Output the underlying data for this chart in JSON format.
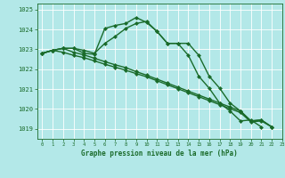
{
  "title": "Graphe pression niveau de la mer (hPa)",
  "background_color": "#b3e8e8",
  "grid_color": "#ffffff",
  "line_color": "#1a6b2a",
  "xlim": [
    -0.5,
    23
  ],
  "ylim": [
    1018.5,
    1025.3
  ],
  "yticks": [
    1019,
    1020,
    1021,
    1022,
    1023,
    1024,
    1025
  ],
  "xticks": [
    0,
    1,
    2,
    3,
    4,
    5,
    6,
    7,
    8,
    9,
    10,
    11,
    12,
    13,
    14,
    15,
    16,
    17,
    18,
    19,
    20,
    21,
    22,
    23
  ],
  "s1_x": [
    0,
    1,
    2,
    3,
    4,
    5,
    6,
    7,
    8,
    9,
    10,
    11,
    12,
    13,
    14,
    15,
    16,
    17,
    18,
    19,
    20,
    21,
    22
  ],
  "s1_y": [
    1022.8,
    1022.95,
    1023.05,
    1023.05,
    1022.8,
    1022.75,
    1024.05,
    1024.2,
    1024.3,
    1024.6,
    1024.35,
    1023.9,
    1023.3,
    1023.3,
    1023.3,
    1022.7,
    1021.65,
    1021.05,
    1020.3,
    1019.9,
    1019.4,
    1019.45,
    1019.1
  ],
  "s2_x": [
    0,
    1,
    2,
    3,
    4,
    5,
    6,
    7,
    8,
    9,
    10,
    11,
    12,
    13,
    14,
    15,
    16,
    17,
    18,
    19,
    20,
    21
  ],
  "s2_y": [
    1022.8,
    1022.95,
    1023.05,
    1023.05,
    1022.95,
    1022.8,
    1023.3,
    1023.65,
    1024.05,
    1024.3,
    1024.4,
    1023.9,
    1023.3,
    1023.3,
    1022.7,
    1021.65,
    1021.05,
    1020.3,
    1019.9,
    1019.4,
    1019.45,
    1019.1
  ],
  "s3_x": [
    0,
    1,
    2,
    3,
    4,
    5,
    6,
    7,
    8,
    9,
    10,
    11,
    12,
    13,
    14,
    15,
    16,
    17,
    18,
    19,
    20,
    21,
    22
  ],
  "s3_y": [
    1022.8,
    1022.95,
    1023.05,
    1022.85,
    1022.72,
    1022.55,
    1022.38,
    1022.22,
    1022.08,
    1021.88,
    1021.7,
    1021.5,
    1021.3,
    1021.1,
    1020.9,
    1020.7,
    1020.5,
    1020.3,
    1020.1,
    1019.9,
    1019.4,
    1019.45,
    1019.1
  ],
  "s4_x": [
    0,
    1,
    2,
    3,
    4,
    5,
    6,
    7,
    8,
    9,
    10,
    11,
    12,
    13,
    14,
    15,
    16,
    17,
    18,
    19,
    20,
    21,
    22
  ],
  "s4_y": [
    1022.8,
    1022.95,
    1022.85,
    1022.7,
    1022.58,
    1022.42,
    1022.25,
    1022.1,
    1021.95,
    1021.78,
    1021.62,
    1021.42,
    1021.22,
    1021.02,
    1020.82,
    1020.62,
    1020.42,
    1020.22,
    1020.02,
    1019.82,
    1019.35,
    1019.4,
    1019.1
  ],
  "marker": "D",
  "markersize": 2.5,
  "linewidth": 1.0
}
